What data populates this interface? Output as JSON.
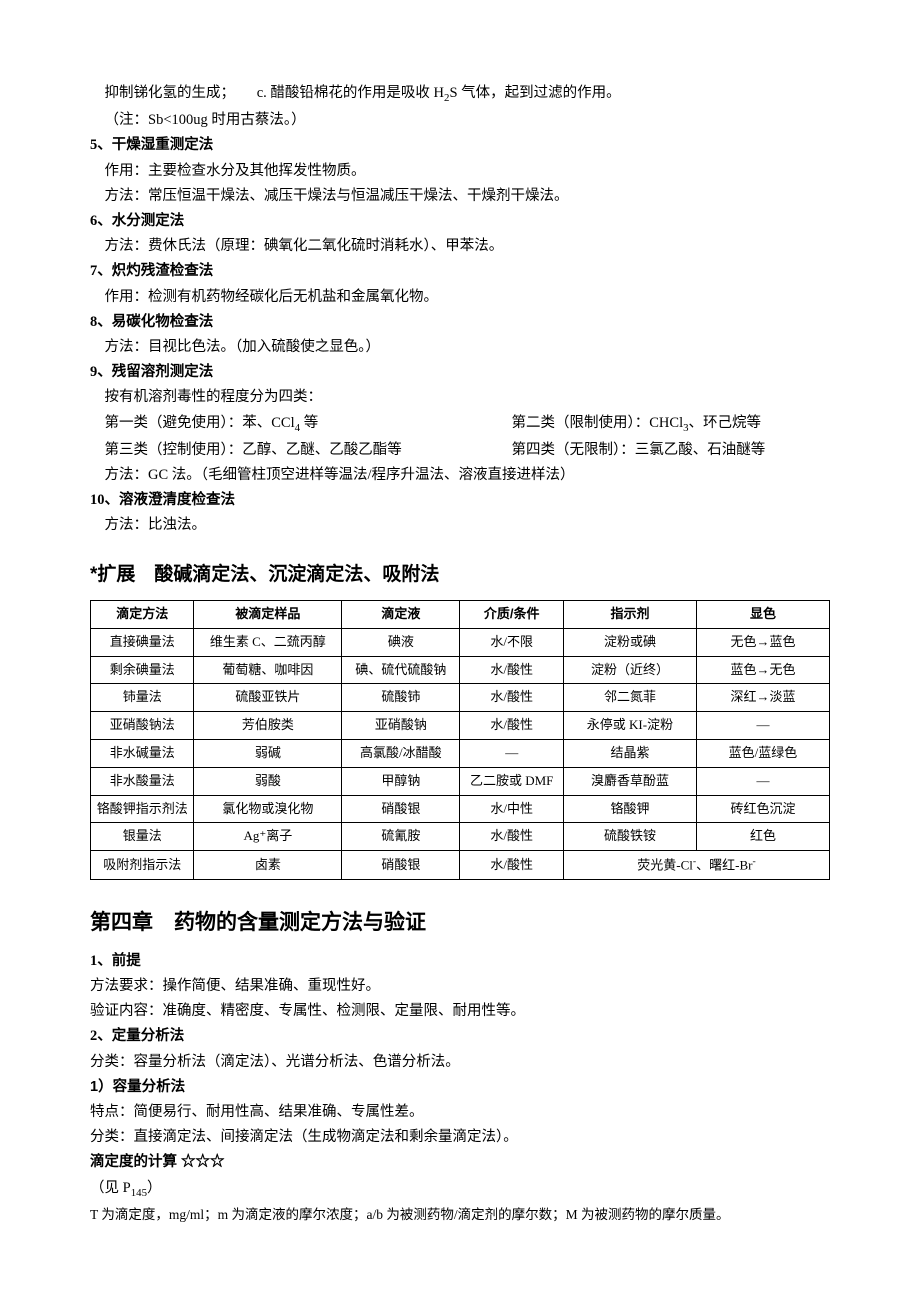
{
  "intro": {
    "line1_a": "抑制锑化氢的生成；",
    "line1_b": "c. 醋酸铅棉花的作用是吸收 H",
    "line1_c": "S 气体，起到过滤的作用。",
    "line2": "（注：Sb<100ug 时用古蔡法。）"
  },
  "s5": {
    "num": "5、",
    "title": "干燥湿重测定法",
    "l1": "作用：主要检查水分及其他挥发性物质。",
    "l2": "方法：常压恒温干燥法、减压干燥法与恒温减压干燥法、干燥剂干燥法。"
  },
  "s6": {
    "num": "6、",
    "title": "水分测定法",
    "l1": "方法：费休氏法（原理：碘氧化二氧化硫时消耗水）、甲苯法。"
  },
  "s7": {
    "num": "7、",
    "title": "炽灼残渣检查法",
    "l1": "作用：检测有机药物经碳化后无机盐和金属氧化物。"
  },
  "s8": {
    "num": "8、",
    "title": "易碳化物检查法",
    "l1": "方法：目视比色法。（加入硫酸使之显色。）"
  },
  "s9": {
    "num": "9、",
    "title": "残留溶剂测定法",
    "l1": "按有机溶剂毒性的程度分为四类：",
    "r1a": "第一类（避免使用）：苯、CCl",
    "r1a_tail": " 等",
    "r1b": "第二类（限制使用）：CHCl",
    "r1b_tail": "、环己烷等",
    "r2a": "第三类（控制使用）：乙醇、乙醚、乙酸乙酯等",
    "r2b": "第四类（无限制）：三氯乙酸、石油醚等",
    "l3": "方法：GC 法。（毛细管柱顶空进样等温法/程序升温法、溶液直接进样法）"
  },
  "s10": {
    "num": "10、",
    "title": "溶液澄清度检查法",
    "l1": "方法：比浊法。"
  },
  "ext": {
    "heading": "*扩展　酸碱滴定法、沉淀滴定法、吸附法"
  },
  "table": {
    "headers": [
      "滴定方法",
      "被滴定样品",
      "滴定液",
      "介质/条件",
      "指示剂",
      "显色"
    ],
    "rows": [
      [
        "直接碘量法",
        "维生素 C、二巯丙醇",
        "碘液",
        "水/不限",
        "淀粉或碘",
        "无色→蓝色"
      ],
      [
        "剩余碘量法",
        "葡萄糖、咖啡因",
        "碘、硫代硫酸钠",
        "水/酸性",
        "淀粉（近终）",
        "蓝色→无色"
      ],
      [
        "铈量法",
        "硫酸亚铁片",
        "硫酸铈",
        "水/酸性",
        "邻二氮菲",
        "深红→淡蓝"
      ],
      [
        "亚硝酸钠法",
        "芳伯胺类",
        "亚硝酸钠",
        "水/酸性",
        "永停或 KI-淀粉",
        "—"
      ],
      [
        "非水碱量法",
        "弱碱",
        "高氯酸/冰醋酸",
        "—",
        "结晶紫",
        "蓝色/蓝绿色"
      ],
      [
        "非水酸量法",
        "弱酸",
        "甲醇钠",
        "乙二胺或 DMF",
        "溴麝香草酚蓝",
        "—"
      ],
      [
        "铬酸钾指示剂法",
        "氯化物或溴化物",
        "硝酸银",
        "水/中性",
        "铬酸钾",
        "砖红色沉淀"
      ],
      [
        "银量法",
        "Ag⁺离子",
        "硫氰胺",
        "水/酸性",
        "硫酸铁铵",
        "红色"
      ]
    ],
    "lastrow": {
      "c1": "吸附剂指示法",
      "c2": "卤素",
      "c3": "硝酸银",
      "c4": "水/酸性",
      "merged_a": "荧光黄-Cl",
      "merged_b": "、曙红-Br"
    }
  },
  "ch4": {
    "heading": "第四章　药物的含量测定方法与验证"
  },
  "s4_1": {
    "num": "1、",
    "title": "前提",
    "l1": "方法要求：操作简便、结果准确、重现性好。",
    "l2": "验证内容：准确度、精密度、专属性、检测限、定量限、耐用性等。"
  },
  "s4_2": {
    "num": "2、",
    "title": "定量分析法",
    "l1": "分类：容量分析法（滴定法）、光谱分析法、色谱分析法。",
    "sub1": "1）容量分析法",
    "l2": "特点：简便易行、耐用性高、结果准确、专属性差。",
    "l3": "分类：直接滴定法、间接滴定法（生成物滴定法和剩余量滴定法）。",
    "calc_title": "滴定度的计算 ☆☆☆",
    "l4a": "（见 P",
    "l4b": "）",
    "l5": "T 为滴定度，mg/ml；m 为滴定液的摩尔浓度；a/b 为被测药物/滴定剂的摩尔数；M 为被测药物的摩尔质量。"
  }
}
